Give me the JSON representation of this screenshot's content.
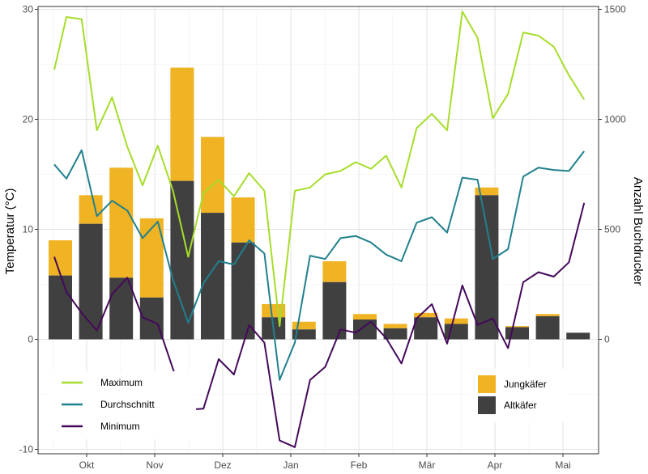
{
  "chart_data": {
    "type": "bar+line",
    "title": "",
    "ylabel_left": "Temperatur (°C)",
    "ylabel_right": "Anzahl Buchdrucker",
    "ylim_left": [
      -10,
      30
    ],
    "ylim_right": [
      -1000,
      1500
    ],
    "yticks_left": [
      -10,
      0,
      10,
      20,
      30
    ],
    "yticks_right": [
      0,
      500,
      1000,
      1500
    ],
    "months": [
      "Okt",
      "Nov",
      "Dez",
      "Jan",
      "Feb",
      "Mär",
      "Apr",
      "Mai"
    ],
    "grid": true,
    "colors": {
      "maximum": "#a6dd2c",
      "durchschnitt": "#21808d",
      "minimum": "#44095a",
      "jungkaefer": "#f0b323",
      "altkaefer": "#404040"
    },
    "bars": {
      "unit": "Anzahl Buchdrucker",
      "week_index": [
        1,
        2,
        3,
        4,
        5,
        6,
        7,
        8,
        9,
        10,
        11,
        12,
        13,
        14,
        15,
        16,
        17,
        18
      ],
      "altkaefer": [
        290,
        525,
        280,
        190,
        720,
        575,
        440,
        100,
        45,
        260,
        90,
        50,
        100,
        70,
        655,
        55,
        105,
        30
      ],
      "jungkaefer": [
        160,
        130,
        500,
        360,
        515,
        345,
        205,
        60,
        35,
        95,
        25,
        20,
        20,
        25,
        35,
        5,
        10,
        0
      ]
    },
    "lines": {
      "unit": "°C",
      "week_index": [
        0.8,
        1.2,
        1.7,
        2.2,
        2.7,
        3.2,
        3.7,
        4.2,
        4.7,
        5.2,
        5.7,
        6.2,
        6.7,
        7.2,
        7.7,
        8.2,
        8.7,
        9.2,
        9.7,
        10.2,
        10.7,
        11.2,
        11.7,
        12.2,
        12.7,
        13.2,
        13.7,
        14.2,
        14.7,
        15.2,
        15.7,
        16.2,
        16.7,
        17.2,
        17.7,
        18.2
      ],
      "series": [
        {
          "name": "Maximum",
          "values": [
            24.5,
            29.3,
            29.1,
            19.0,
            22.0,
            17.5,
            14.0,
            17.6,
            13.5,
            7.5,
            13.3,
            14.5,
            13.0,
            15.1,
            13.5,
            1.2,
            13.5,
            13.8,
            15.0,
            15.3,
            16.1,
            15.5,
            16.7,
            13.8,
            19.2,
            20.5,
            19.0,
            29.8,
            27.4,
            20.1,
            22.3,
            27.9,
            27.6,
            26.6,
            24.0,
            21.8
          ]
        },
        {
          "name": "Durchschnitt",
          "values": [
            15.9,
            14.6,
            17.2,
            11.2,
            12.6,
            11.7,
            9.2,
            10.7,
            5.4,
            1.5,
            5.1,
            7.1,
            6.8,
            9.0,
            7.8,
            -3.7,
            -0.3,
            7.6,
            7.3,
            9.2,
            9.4,
            8.8,
            7.7,
            7.1,
            10.6,
            11.1,
            9.7,
            14.7,
            14.5,
            7.3,
            8.2,
            14.8,
            15.6,
            15.4,
            15.3,
            17.1
          ]
        },
        {
          "name": "Minimum",
          "values": [
            7.5,
            4.3,
            2.4,
            0.8,
            4.1,
            5.6,
            2.0,
            1.4,
            -2.7,
            -6.4,
            -6.3,
            -1.8,
            -3.2,
            1.3,
            -0.3,
            -9.2,
            -9.8,
            -3.7,
            -2.5,
            0.9,
            0.6,
            1.6,
            0.1,
            -2.2,
            1.9,
            3.2,
            -0.4,
            4.9,
            1.3,
            1.9,
            -0.8,
            5.2,
            6.1,
            5.7,
            7.0,
            12.4
          ]
        }
      ]
    },
    "legend_lines": [
      "Maximum",
      "Durchschnitt",
      "Minimum"
    ],
    "legend_bars": [
      "Jungkäfer",
      "Altkäfer"
    ]
  }
}
